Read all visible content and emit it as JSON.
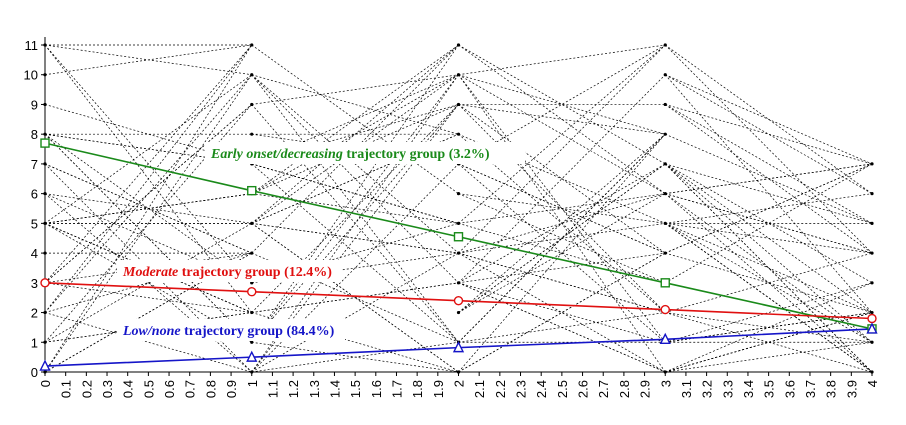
{
  "chart_data": {
    "type": "line",
    "title": "",
    "xlabel": "",
    "ylabel": "",
    "xlim": [
      0,
      4
    ],
    "ylim": [
      0,
      11
    ],
    "x_ticks": [
      "0",
      "0.1",
      "0.2",
      "0.3",
      "0.4",
      "0.5",
      "0.6",
      "0.7",
      "0.8",
      "0.9",
      "1",
      "1.1",
      "1.2",
      "1.3",
      "1.4",
      "1.5",
      "1.6",
      "1.7",
      "1.8",
      "1.9",
      "2",
      "2.1",
      "2.2",
      "2.3",
      "2.4",
      "2.5",
      "2.6",
      "2.7",
      "2.8",
      "2.9",
      "3",
      "3.1",
      "3.2",
      "3.3",
      "3.4",
      "3.5",
      "3.6",
      "3.7",
      "3.8",
      "3.9",
      "4"
    ],
    "y_ticks": [
      "0",
      "1",
      "2",
      "3",
      "4",
      "5",
      "6",
      "7",
      "8",
      "9",
      "10",
      "11"
    ],
    "observed_levels": {
      "x": [
        0,
        1,
        2,
        3,
        4
      ],
      "values_at_each_x": [
        [
          0,
          1,
          2,
          3,
          4,
          5,
          6,
          7,
          8,
          9,
          10,
          11
        ],
        [
          0,
          1,
          2,
          3,
          4,
          5,
          6,
          7,
          8,
          9,
          10,
          11
        ],
        [
          0,
          1,
          2,
          3,
          4,
          5,
          6,
          7,
          8,
          9,
          10,
          11
        ],
        [
          0,
          1,
          2,
          3,
          4,
          5,
          6,
          7,
          8,
          9,
          10,
          11
        ],
        [
          0,
          1,
          2,
          3,
          4,
          5,
          6,
          7
        ]
      ],
      "line_style": "dashed",
      "color": "#000000"
    },
    "series": [
      {
        "label_prefix": "Early onset/decreasing",
        "label_suffix": " trajectory group (3.2%)",
        "color": "#1a8a1a",
        "marker": "square",
        "x": [
          0,
          1,
          2,
          3,
          4
        ],
        "values": [
          7.7,
          6.1,
          4.55,
          3.0,
          1.45
        ]
      },
      {
        "label_prefix": "Moderate",
        "label_suffix": " trajectory group (12.4%)",
        "color": "#e01010",
        "marker": "circle",
        "x": [
          0,
          1,
          2,
          3,
          4
        ],
        "values": [
          3.0,
          2.7,
          2.4,
          2.1,
          1.8
        ]
      },
      {
        "label_prefix": "Low/none",
        "label_suffix": " trajectory group (84.4%)",
        "color": "#1515c8",
        "marker": "triangle",
        "x": [
          0,
          1,
          2,
          3,
          4
        ],
        "values": [
          0.2,
          0.5,
          0.82,
          1.1,
          1.45
        ]
      }
    ],
    "grid": false,
    "legend": "none"
  }
}
